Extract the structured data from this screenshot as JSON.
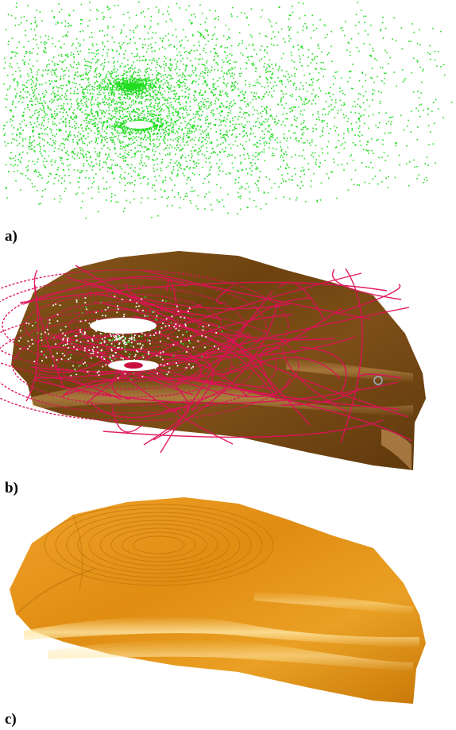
{
  "panels": [
    {
      "label": "a)",
      "kind": "point-cloud",
      "color": "#22dd22"
    },
    {
      "label": "b)",
      "kind": "mesh-with-wireframe",
      "surface_color": "#7a4a14",
      "wire_color": "#e0105a"
    },
    {
      "label": "c)",
      "kind": "smooth-surface",
      "surface_color": "#e89a1a"
    }
  ]
}
